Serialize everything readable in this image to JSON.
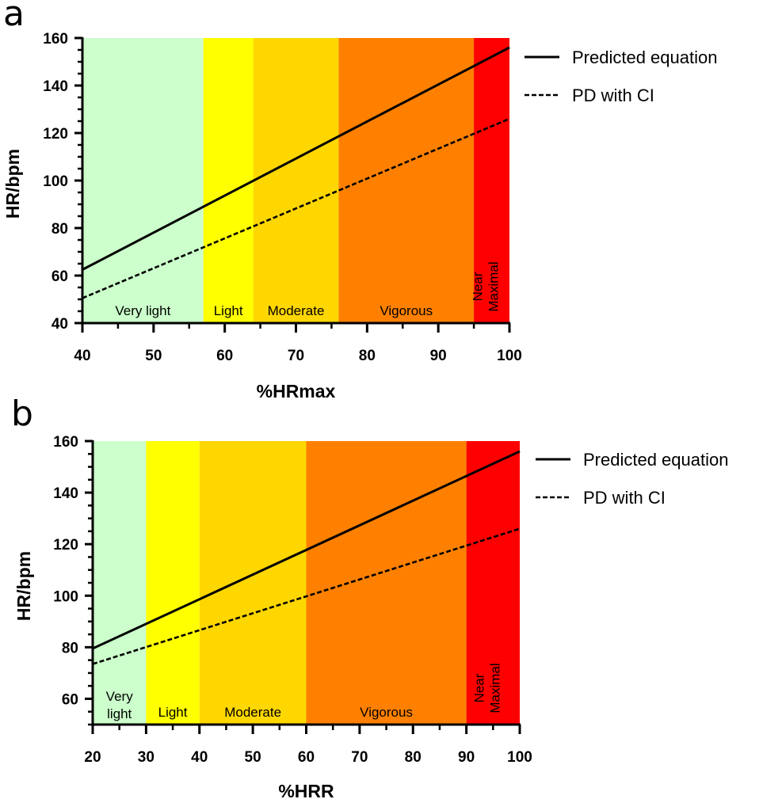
{
  "chart_data": [
    {
      "panel": "a",
      "type": "line",
      "xlabel": "%HRmax",
      "ylabel": "HR/bpm",
      "xlim": [
        40,
        100
      ],
      "ylim": [
        40,
        160
      ],
      "xticks": [
        40,
        50,
        60,
        70,
        80,
        90,
        100
      ],
      "yticks": [
        40,
        60,
        80,
        100,
        120,
        140,
        160
      ],
      "legend_position": "right",
      "series": [
        {
          "name": "Predicted equation",
          "style": "solid",
          "x": [
            40,
            100
          ],
          "y": [
            62.5,
            156
          ]
        },
        {
          "name": "PD with CI",
          "style": "dashed",
          "x": [
            40,
            100
          ],
          "y": [
            50.5,
            126
          ]
        }
      ],
      "zones": [
        {
          "label": "Very light",
          "from": 40,
          "to": 57,
          "color": "#ccffcc"
        },
        {
          "label": "Light",
          "from": 57,
          "to": 64,
          "color": "#ffff00"
        },
        {
          "label": "Moderate",
          "from": 64,
          "to": 76,
          "color": "#ffd700"
        },
        {
          "label": "Vigorous",
          "from": 76,
          "to": 95,
          "color": "#ff8000"
        },
        {
          "label": "Near Maximal",
          "from": 95,
          "to": 100,
          "color": "#ff0000",
          "vertical": true
        }
      ]
    },
    {
      "panel": "b",
      "type": "line",
      "xlabel": "%HRR",
      "ylabel": "HR/bpm",
      "xlim": [
        20,
        100
      ],
      "ylim": [
        50,
        160
      ],
      "xticks": [
        20,
        30,
        40,
        50,
        60,
        70,
        80,
        90,
        100
      ],
      "yticks": [
        60,
        80,
        100,
        120,
        140,
        160
      ],
      "legend_position": "right",
      "series": [
        {
          "name": "Predicted equation",
          "style": "solid",
          "x": [
            20,
            100
          ],
          "y": [
            79.5,
            156
          ]
        },
        {
          "name": "PD with CI",
          "style": "dashed",
          "x": [
            20,
            100
          ],
          "y": [
            73.5,
            126
          ]
        }
      ],
      "zones": [
        {
          "label": "Very light",
          "lines": [
            "Very",
            "light"
          ],
          "from": 20,
          "to": 30,
          "color": "#ccffcc"
        },
        {
          "label": "Light",
          "from": 30,
          "to": 40,
          "color": "#ffff00"
        },
        {
          "label": "Moderate",
          "from": 40,
          "to": 60,
          "color": "#ffd700"
        },
        {
          "label": "Vigorous",
          "from": 60,
          "to": 90,
          "color": "#ff8000"
        },
        {
          "label": "Near Maximal",
          "from": 90,
          "to": 100,
          "color": "#ff0000",
          "vertical": true
        }
      ]
    }
  ]
}
